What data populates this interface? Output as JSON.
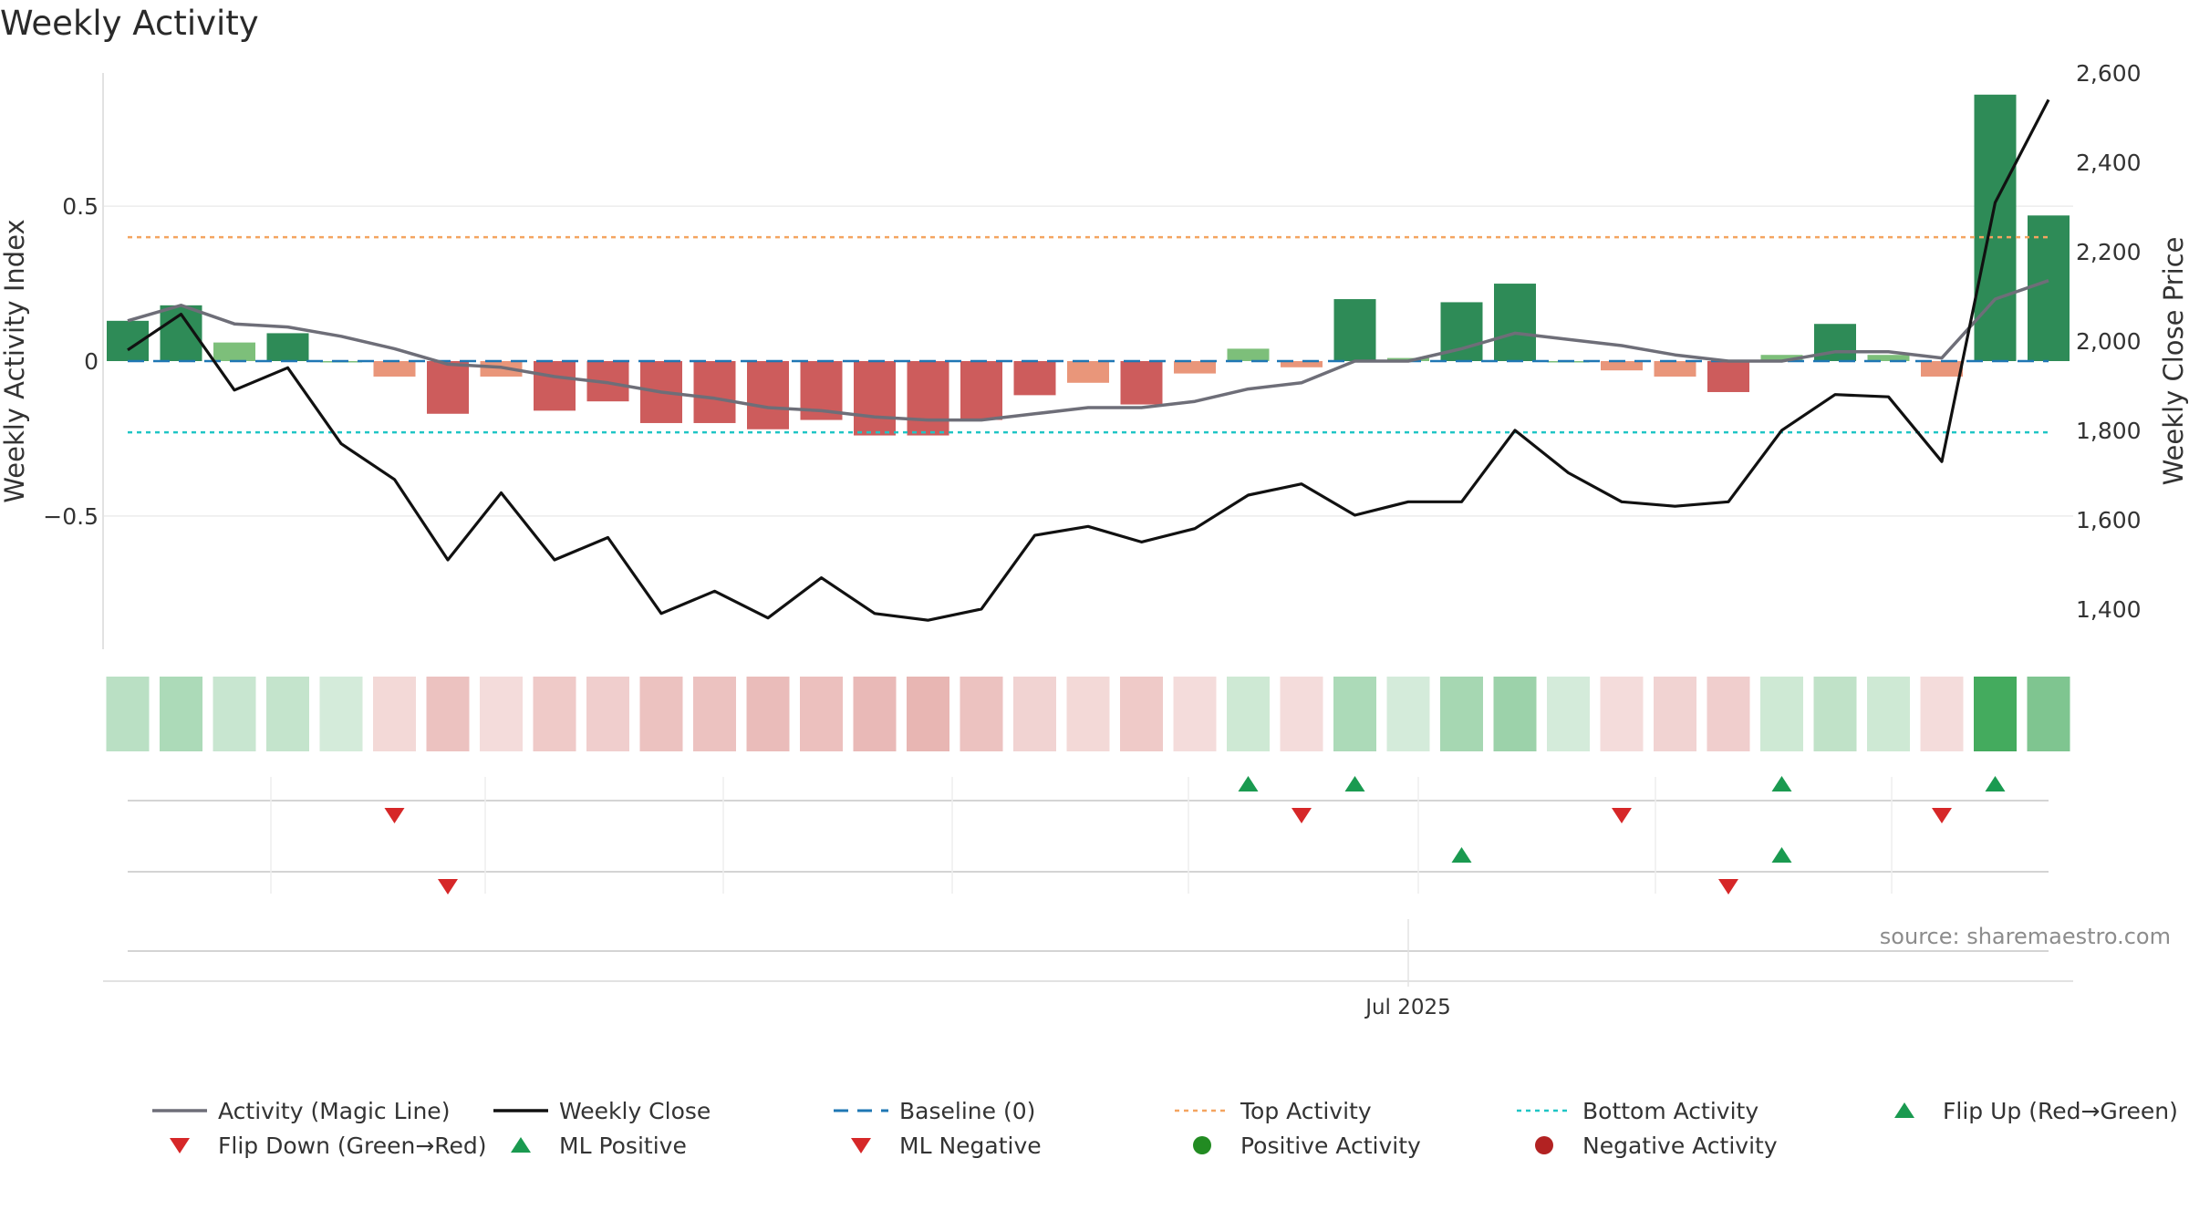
{
  "chart_data": {
    "type": "bar",
    "title": "Weekly Activity",
    "ylabel": "Weekly Activity Index",
    "y2label": "Weekly Close Price",
    "ylim": [
      -0.93,
      0.93
    ],
    "y2lim": [
      1310,
      2600
    ],
    "yticks": [
      -0.5,
      0,
      0.5
    ],
    "ytick_labels": [
      "−0.5",
      "0",
      "0.5"
    ],
    "y2ticks": [
      1400,
      1600,
      1800,
      2000,
      2200,
      2400,
      2600
    ],
    "y2tick_labels": [
      "1,400",
      "1,600",
      "1,800",
      "2,000",
      "2,200",
      "2,400",
      "2,600"
    ],
    "xticks": [
      {
        "index": 24,
        "label": "Jul 2025"
      }
    ],
    "grid": true,
    "legend_position": "bottom",
    "thresholds": {
      "baseline": 0,
      "top": 0.4,
      "bottom": -0.23
    },
    "series": [
      {
        "name": "Weekly Activity",
        "kind": "bar",
        "values": [
          0.13,
          0.18,
          0.06,
          0.09,
          0.0,
          -0.05,
          -0.17,
          -0.05,
          -0.16,
          -0.13,
          -0.2,
          -0.2,
          -0.22,
          -0.19,
          -0.24,
          -0.24,
          -0.19,
          -0.11,
          -0.07,
          -0.14,
          -0.04,
          0.04,
          -0.02,
          0.2,
          0.01,
          0.19,
          0.25,
          0.0,
          -0.03,
          -0.05,
          -0.1,
          0.02,
          0.12,
          0.02,
          -0.05,
          0.86,
          0.47
        ]
      },
      {
        "name": "Activity (Magic Line)",
        "kind": "line",
        "values": [
          0.13,
          0.18,
          0.12,
          0.11,
          0.08,
          0.04,
          -0.01,
          -0.02,
          -0.05,
          -0.07,
          -0.1,
          -0.12,
          -0.15,
          -0.16,
          -0.18,
          -0.19,
          -0.19,
          -0.17,
          -0.15,
          -0.15,
          -0.13,
          -0.09,
          -0.07,
          0.0,
          0.0,
          0.04,
          0.09,
          0.07,
          0.05,
          0.02,
          0.0,
          0.0,
          0.03,
          0.03,
          0.01,
          0.2,
          0.26
        ]
      },
      {
        "name": "Weekly Close",
        "kind": "line",
        "axis": "right",
        "values": [
          1980,
          2060,
          1890,
          1940,
          1770,
          1690,
          1510,
          1660,
          1510,
          1560,
          1390,
          1440,
          1380,
          1470,
          1390,
          1375,
          1400,
          1565,
          1585,
          1550,
          1580,
          1655,
          1680,
          1610,
          1640,
          1640,
          1800,
          1705,
          1640,
          1630,
          1640,
          1800,
          1880,
          1875,
          1730,
          2310,
          2540
        ]
      }
    ],
    "heatmap_opacity": [
      0.35,
      0.42,
      0.28,
      0.3,
      0.22,
      0.22,
      0.35,
      0.2,
      0.3,
      0.28,
      0.35,
      0.35,
      0.38,
      0.36,
      0.4,
      0.42,
      0.35,
      0.25,
      0.22,
      0.3,
      0.2,
      0.25,
      0.2,
      0.42,
      0.22,
      0.45,
      0.5,
      0.22,
      0.2,
      0.25,
      0.28,
      0.25,
      0.32,
      0.25,
      0.2,
      0.95,
      0.65
    ],
    "signal_rows": [
      {
        "name": "row1",
        "up": [
          21,
          23,
          31,
          35
        ],
        "down": [
          5,
          22,
          28,
          34
        ]
      },
      {
        "name": "row2",
        "up": [
          25,
          31
        ],
        "down": [
          6,
          30
        ]
      },
      {
        "name": "row3",
        "up": [],
        "down": []
      }
    ]
  },
  "colors": {
    "strong_green": "#2e8b57",
    "light_green": "#7dbf7a",
    "strong_red": "#cd5c5c",
    "light_red": "#e9967a",
    "heat_green": "#3aa655",
    "heat_red": "#c9504a",
    "magic_line": "#6e6e78",
    "close_line": "#111111",
    "baseline": "#1f77b4",
    "top": "#f4a460",
    "bottom": "#20c5c5",
    "up_marker": "#1a9a50",
    "down_marker": "#d62728",
    "neg_dot": "#b22222",
    "pos_dot": "#228b22"
  },
  "source": "source: sharemaestro.com",
  "legend": [
    {
      "label": "Activity (Magic Line)",
      "symbol": "line",
      "color": "#6e6e78"
    },
    {
      "label": "Weekly Close",
      "symbol": "line",
      "color": "#111111"
    },
    {
      "label": "Baseline (0)",
      "symbol": "dash",
      "color": "#1f77b4"
    },
    {
      "label": "Top Activity",
      "symbol": "dot",
      "color": "#f4a460"
    },
    {
      "label": "Bottom Activity",
      "symbol": "dot",
      "color": "#20c5c5"
    },
    {
      "label": "Flip Up (Red→Green)",
      "symbol": "tri-up",
      "color": "#1a9a50"
    },
    {
      "label": "Flip Down (Green→Red)",
      "symbol": "tri-down",
      "color": "#d62728"
    },
    {
      "label": "ML Positive",
      "symbol": "tri-up",
      "color": "#1a9a50"
    },
    {
      "label": "ML Negative",
      "symbol": "tri-down",
      "color": "#d62728"
    },
    {
      "label": "Positive Activity",
      "symbol": "circle",
      "color": "#228b22"
    },
    {
      "label": "Negative Activity",
      "symbol": "circle",
      "color": "#b22222"
    }
  ]
}
